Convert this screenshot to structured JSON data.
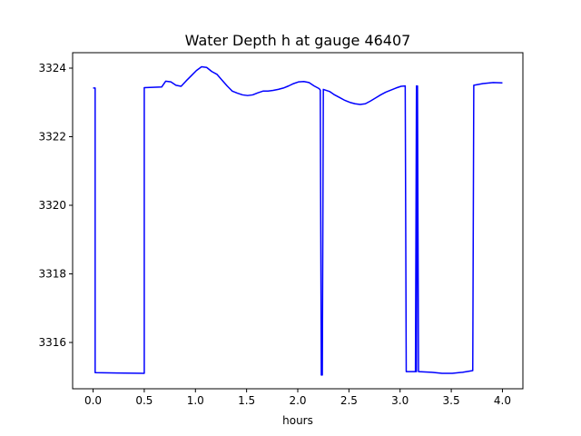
{
  "chart_data": {
    "type": "line",
    "title": "Water Depth h at gauge 46407",
    "xlabel": "hours",
    "ylabel": "",
    "xlim": [
      -0.2,
      4.2
    ],
    "ylim": [
      3314.65,
      3324.45
    ],
    "xticks": [
      {
        "value": 0.0,
        "label": "0.0"
      },
      {
        "value": 0.5,
        "label": "0.5"
      },
      {
        "value": 1.0,
        "label": "1.0"
      },
      {
        "value": 1.5,
        "label": "1.5"
      },
      {
        "value": 2.0,
        "label": "2.0"
      },
      {
        "value": 2.5,
        "label": "2.5"
      },
      {
        "value": 3.0,
        "label": "3.0"
      },
      {
        "value": 3.5,
        "label": "3.5"
      },
      {
        "value": 4.0,
        "label": "4.0"
      }
    ],
    "yticks": [
      {
        "value": 3316,
        "label": "3316"
      },
      {
        "value": 3318,
        "label": "3318"
      },
      {
        "value": 3320,
        "label": "3320"
      },
      {
        "value": 3322,
        "label": "3322"
      },
      {
        "value": 3324,
        "label": "3324"
      }
    ],
    "grid": false,
    "series": [
      {
        "name": "",
        "color": "#0000ff",
        "points": [
          [
            0.0,
            3323.42
          ],
          [
            0.02,
            3323.42
          ],
          [
            0.02,
            3315.12
          ],
          [
            0.5,
            3315.1
          ],
          [
            0.5,
            3323.43
          ],
          [
            0.67,
            3323.45
          ],
          [
            0.71,
            3323.62
          ],
          [
            0.76,
            3323.6
          ],
          [
            0.81,
            3323.5
          ],
          [
            0.86,
            3323.47
          ],
          [
            0.91,
            3323.63
          ],
          [
            0.96,
            3323.78
          ],
          [
            1.01,
            3323.93
          ],
          [
            1.06,
            3324.04
          ],
          [
            1.11,
            3324.02
          ],
          [
            1.16,
            3323.9
          ],
          [
            1.21,
            3323.82
          ],
          [
            1.26,
            3323.65
          ],
          [
            1.31,
            3323.48
          ],
          [
            1.36,
            3323.33
          ],
          [
            1.41,
            3323.27
          ],
          [
            1.46,
            3323.22
          ],
          [
            1.51,
            3323.2
          ],
          [
            1.56,
            3323.22
          ],
          [
            1.61,
            3323.28
          ],
          [
            1.66,
            3323.33
          ],
          [
            1.71,
            3323.33
          ],
          [
            1.76,
            3323.35
          ],
          [
            1.81,
            3323.38
          ],
          [
            1.86,
            3323.42
          ],
          [
            1.91,
            3323.48
          ],
          [
            1.96,
            3323.55
          ],
          [
            2.01,
            3323.6
          ],
          [
            2.06,
            3323.61
          ],
          [
            2.11,
            3323.58
          ],
          [
            2.16,
            3323.48
          ],
          [
            2.21,
            3323.4
          ],
          [
            2.22,
            3323.36
          ],
          [
            2.23,
            3315.05
          ],
          [
            2.24,
            3315.05
          ],
          [
            2.25,
            3323.38
          ],
          [
            2.31,
            3323.32
          ],
          [
            2.36,
            3323.22
          ],
          [
            2.41,
            3323.14
          ],
          [
            2.46,
            3323.06
          ],
          [
            2.51,
            3323.0
          ],
          [
            2.56,
            3322.96
          ],
          [
            2.61,
            3322.94
          ],
          [
            2.66,
            3322.96
          ],
          [
            2.71,
            3323.04
          ],
          [
            2.76,
            3323.13
          ],
          [
            2.81,
            3323.22
          ],
          [
            2.86,
            3323.3
          ],
          [
            2.91,
            3323.36
          ],
          [
            2.96,
            3323.42
          ],
          [
            3.01,
            3323.47
          ],
          [
            3.05,
            3323.48
          ],
          [
            3.06,
            3315.15
          ],
          [
            3.15,
            3315.15
          ],
          [
            3.16,
            3323.48
          ],
          [
            3.16,
            3315.15
          ],
          [
            3.17,
            3323.48
          ],
          [
            3.18,
            3315.15
          ],
          [
            3.31,
            3315.13
          ],
          [
            3.41,
            3315.1
          ],
          [
            3.51,
            3315.1
          ],
          [
            3.61,
            3315.13
          ],
          [
            3.71,
            3315.18
          ],
          [
            3.72,
            3323.5
          ],
          [
            3.81,
            3323.55
          ],
          [
            3.91,
            3323.58
          ],
          [
            4.0,
            3323.57
          ]
        ]
      }
    ]
  }
}
